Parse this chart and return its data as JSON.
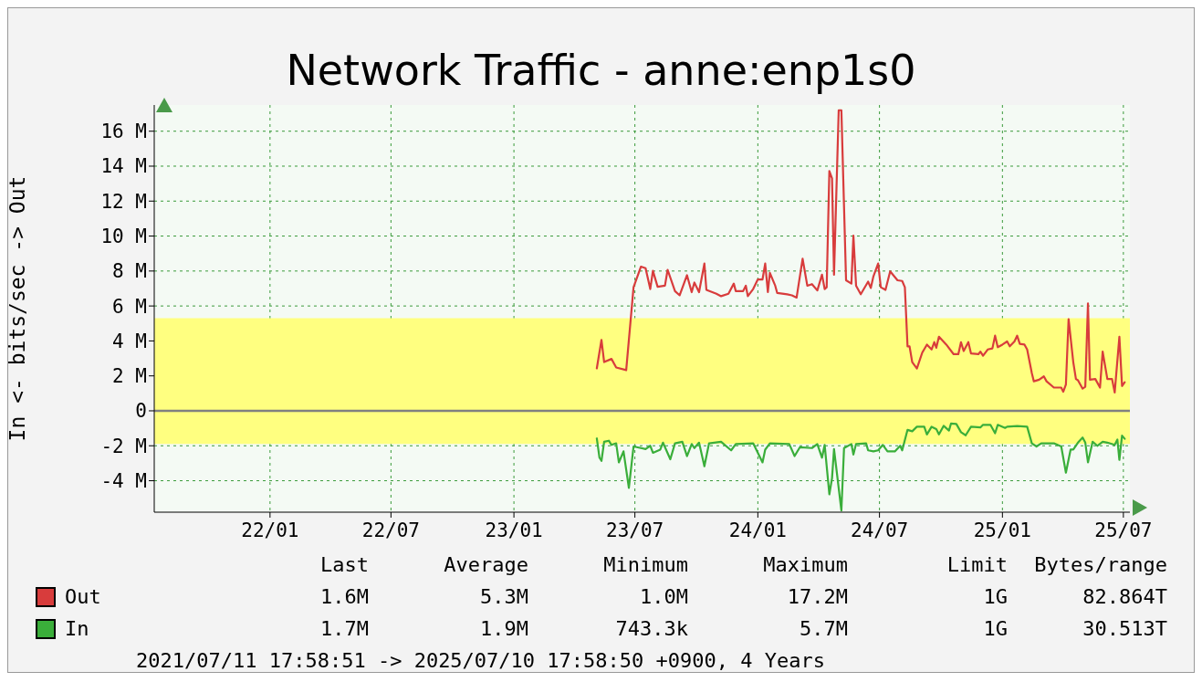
{
  "chart_data": {
    "type": "line",
    "title": "Network Traffic - anne:enp1s0",
    "ylabel": "In <-  bits/sec -> Out",
    "xlim": [
      "2021-07-11T17:58",
      "2025-07-10T17:58"
    ],
    "xticks": [
      {
        "value": "2022-01",
        "label": "22/01"
      },
      {
        "value": "2022-07",
        "label": "22/07"
      },
      {
        "value": "2023-01",
        "label": "23/01"
      },
      {
        "value": "2023-07",
        "label": "23/07"
      },
      {
        "value": "2024-01",
        "label": "24/01"
      },
      {
        "value": "2024-07",
        "label": "24/07"
      },
      {
        "value": "2025-01",
        "label": "25/01"
      },
      {
        "value": "2025-07",
        "label": "25/07"
      }
    ],
    "ylim": [
      -5.8,
      17.5
    ],
    "yticks": [
      {
        "value": -4,
        "label": "-4 M"
      },
      {
        "value": -2,
        "label": "-2 M"
      },
      0,
      {
        "value": 2,
        "label": "2 M"
      },
      {
        "value": 4,
        "label": "4 M"
      },
      {
        "value": 6,
        "label": "6 M"
      },
      {
        "value": 8,
        "label": "8 M"
      },
      {
        "value": 10,
        "label": "10 M"
      },
      {
        "value": 12,
        "label": "12 M"
      },
      {
        "value": 14,
        "label": "14 M"
      },
      {
        "value": 16,
        "label": "16 M"
      }
    ],
    "grid": true,
    "legend": "bottom",
    "bands": [
      {
        "axis": "y",
        "from": -1.9,
        "to": 5.3,
        "color": "#ffff80"
      }
    ],
    "ref_lines": [
      {
        "axis": "y",
        "value": 0,
        "color": "#808080"
      }
    ],
    "series": [
      {
        "name": "Out",
        "color": "#d83c3c",
        "x": [
          "2023-05-05",
          "2023-05-12",
          "2023-05-16",
          "2023-05-27",
          "2023-06-03",
          "2023-06-18",
          "2023-06-29",
          "2023-07-10",
          "2023-07-17",
          "2023-07-24",
          "2023-07-28",
          "2023-08-04",
          "2023-08-15",
          "2023-08-19",
          "2023-08-30",
          "2023-09-06",
          "2023-09-17",
          "2023-09-24",
          "2023-09-28",
          "2023-10-05",
          "2023-10-13",
          "2023-10-16",
          "2023-10-31",
          "2023-11-07",
          "2023-11-18",
          "2023-11-26",
          "2023-11-29",
          "2023-12-10",
          "2023-12-14",
          "2023-12-17",
          "2023-12-25",
          "2024-01-01",
          "2024-01-08",
          "2024-01-12",
          "2024-01-16",
          "2024-01-19",
          "2024-01-27",
          "2024-01-30",
          "2024-02-14",
          "2024-02-21",
          "2024-02-28",
          "2024-03-08",
          "2024-03-15",
          "2024-03-22",
          "2024-03-30",
          "2024-04-06",
          "2024-04-10",
          "2024-04-13",
          "2024-04-17",
          "2024-04-21",
          "2024-04-24",
          "2024-05-01",
          "2024-05-05",
          "2024-05-12",
          "2024-05-20",
          "2024-05-23",
          "2024-05-27",
          "2024-06-03",
          "2024-06-14",
          "2024-06-18",
          "2024-06-22",
          "2024-06-29",
          "2024-07-03",
          "2024-07-10",
          "2024-07-17",
          "2024-07-28",
          "2024-08-04",
          "2024-08-08",
          "2024-08-12",
          "2024-08-15",
          "2024-08-19",
          "2024-08-26",
          "2024-09-03",
          "2024-09-10",
          "2024-09-17",
          "2024-09-21",
          "2024-09-24",
          "2024-09-28",
          "2024-10-09",
          "2024-10-20",
          "2024-10-27",
          "2024-10-31",
          "2024-11-04",
          "2024-11-11",
          "2024-11-15",
          "2024-11-26",
          "2024-11-29",
          "2024-12-03",
          "2024-12-10",
          "2024-12-17",
          "2024-12-21",
          "2024-12-25",
          "2025-01-01",
          "2025-01-08",
          "2025-01-12",
          "2025-01-19",
          "2025-01-23",
          "2025-01-27",
          "2025-02-03",
          "2025-02-07",
          "2025-02-14",
          "2025-02-17",
          "2025-02-25",
          "2025-03-04",
          "2025-03-08",
          "2025-03-19",
          "2025-03-30",
          "2025-04-02",
          "2025-04-06",
          "2025-04-10",
          "2025-04-17",
          "2025-04-21",
          "2025-04-24",
          "2025-05-01",
          "2025-05-05",
          "2025-05-09",
          "2025-05-12",
          "2025-05-20",
          "2025-05-27",
          "2025-05-31",
          "2025-06-07",
          "2025-06-14",
          "2025-06-18",
          "2025-06-25",
          "2025-06-29",
          "2025-07-03"
        ],
        "values": [
          2.43,
          4.06,
          2.79,
          2.97,
          2.48,
          2.33,
          7.07,
          8.25,
          8.16,
          6.97,
          8.01,
          7.1,
          7.16,
          8.07,
          6.85,
          6.61,
          7.76,
          6.79,
          7.34,
          6.79,
          8.43,
          6.92,
          6.7,
          6.56,
          6.7,
          7.28,
          6.85,
          6.85,
          7.16,
          6.56,
          6.97,
          7.52,
          7.52,
          8.43,
          6.79,
          7.89,
          7.16,
          6.74,
          6.67,
          6.61,
          6.48,
          8.7,
          7.16,
          7.25,
          6.89,
          7.79,
          6.97,
          7.07,
          13.72,
          13.3,
          7.79,
          17.2,
          17.2,
          7.47,
          7.28,
          10.02,
          7.16,
          6.67,
          7.39,
          7.03,
          7.7,
          8.43,
          7.07,
          6.92,
          7.98,
          7.47,
          7.43,
          7.07,
          3.69,
          3.69,
          2.79,
          2.42,
          3.33,
          3.79,
          3.51,
          3.93,
          3.61,
          4.24,
          3.79,
          3.24,
          3.24,
          3.93,
          3.42,
          3.93,
          3.28,
          3.24,
          3.39,
          3.15,
          3.51,
          3.57,
          4.3,
          3.64,
          3.79,
          3.97,
          3.69,
          3.97,
          4.3,
          3.83,
          3.79,
          3.51,
          2.15,
          1.69,
          1.78,
          1.97,
          1.69,
          1.33,
          1.33,
          1.09,
          1.51,
          5.25,
          2.79,
          1.82,
          1.75,
          1.27,
          1.38,
          6.15,
          1.78,
          1.82,
          1.33,
          3.39,
          1.82,
          1.82,
          1.05,
          4.24,
          1.42,
          1.64
        ]
      },
      {
        "name": "In",
        "color": "#3aae3a",
        "x": [
          "2023-05-05",
          "2023-05-09",
          "2023-05-12",
          "2023-05-16",
          "2023-05-23",
          "2023-05-27",
          "2023-06-03",
          "2023-06-07",
          "2023-06-14",
          "2023-06-22",
          "2023-06-29",
          "2023-07-10",
          "2023-07-17",
          "2023-07-24",
          "2023-07-28",
          "2023-08-08",
          "2023-08-12",
          "2023-08-23",
          "2023-08-30",
          "2023-09-10",
          "2023-09-17",
          "2023-09-24",
          "2023-09-28",
          "2023-10-05",
          "2023-10-13",
          "2023-10-20",
          "2023-11-07",
          "2023-11-22",
          "2023-11-29",
          "2023-12-25",
          "2024-01-08",
          "2024-01-12",
          "2024-01-19",
          "2024-02-17",
          "2024-02-25",
          "2024-03-04",
          "2024-03-22",
          "2024-03-30",
          "2024-04-06",
          "2024-04-10",
          "2024-04-17",
          "2024-04-21",
          "2024-04-24",
          "2024-05-05",
          "2024-05-09",
          "2024-05-20",
          "2024-05-23",
          "2024-05-27",
          "2024-06-11",
          "2024-06-14",
          "2024-06-22",
          "2024-06-29",
          "2024-07-06",
          "2024-07-13",
          "2024-07-24",
          "2024-08-01",
          "2024-08-04",
          "2024-08-12",
          "2024-08-19",
          "2024-08-26",
          "2024-09-06",
          "2024-09-10",
          "2024-09-17",
          "2024-09-24",
          "2024-09-28",
          "2024-10-05",
          "2024-10-13",
          "2024-10-16",
          "2024-10-24",
          "2024-10-31",
          "2024-11-07",
          "2024-11-15",
          "2024-11-29",
          "2024-12-03",
          "2024-12-14",
          "2024-12-21",
          "2024-12-25",
          "2025-01-05",
          "2025-01-08",
          "2025-01-23",
          "2025-02-07",
          "2025-02-14",
          "2025-02-21",
          "2025-02-28",
          "2025-03-19",
          "2025-03-30",
          "2025-04-06",
          "2025-04-13",
          "2025-04-17",
          "2025-04-24",
          "2025-05-01",
          "2025-05-05",
          "2025-05-09",
          "2025-05-16",
          "2025-05-23",
          "2025-05-31",
          "2025-06-07",
          "2025-06-18",
          "2025-06-22",
          "2025-06-25",
          "2025-06-29",
          "2025-07-03"
        ],
        "values": [
          -1.58,
          -2.68,
          -2.86,
          -1.77,
          -1.71,
          -1.95,
          -1.86,
          -2.95,
          -2.32,
          -4.41,
          -2.04,
          -2.13,
          -2.19,
          -2.0,
          -2.4,
          -2.22,
          -1.82,
          -2.77,
          -1.86,
          -1.77,
          -2.59,
          -1.9,
          -2.13,
          -1.82,
          -3.17,
          -1.86,
          -1.77,
          -2.26,
          -1.9,
          -1.86,
          -2.95,
          -2.22,
          -1.86,
          -1.9,
          -2.59,
          -2.08,
          -2.13,
          -1.9,
          -2.68,
          -1.95,
          -4.78,
          -3.86,
          -2.19,
          -5.7,
          -2.13,
          -1.9,
          -2.5,
          -1.9,
          -1.86,
          -2.26,
          -2.32,
          -2.26,
          -1.95,
          -2.32,
          -2.32,
          -2.0,
          -2.26,
          -1.09,
          -1.17,
          -0.91,
          -0.91,
          -1.35,
          -0.91,
          -1.04,
          -1.35,
          -0.86,
          -1.13,
          -0.73,
          -0.75,
          -1.22,
          -1.4,
          -0.91,
          -0.95,
          -0.8,
          -0.8,
          -1.28,
          -0.8,
          -0.98,
          -0.91,
          -0.87,
          -0.91,
          -1.86,
          -2.04,
          -1.86,
          -1.86,
          -2.04,
          -3.54,
          -2.22,
          -2.22,
          -1.82,
          -1.53,
          -1.82,
          -2.95,
          -1.77,
          -2.0,
          -1.77,
          -1.82,
          -1.95,
          -1.64,
          -2.81,
          -1.42,
          -1.6
        ]
      }
    ],
    "annotations": [
      "Last",
      "Average",
      "Minimum",
      "Maximum",
      "Limit",
      "Bytes/range",
      "1.6M",
      "5.3M",
      "1.0M",
      "17.2M",
      "1G",
      "82.864T",
      "1.7M",
      "1.9M",
      "743.3k",
      "5.7M",
      "1G",
      "30.513T",
      "2021/07/11 17:58:51 -> 2025/07/10 17:58:50 +0900, 4 Years"
    ]
  }
}
